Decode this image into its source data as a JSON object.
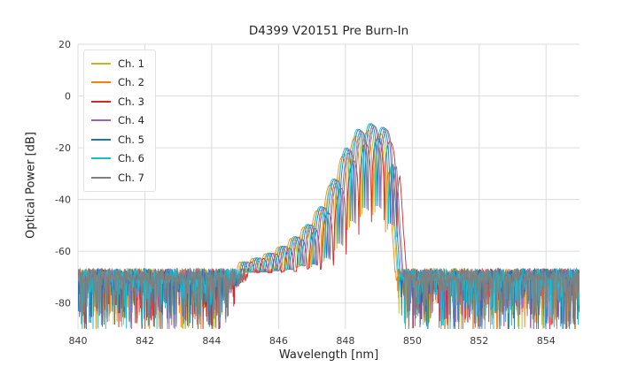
{
  "chart_data": {
    "type": "line",
    "title": "D4399 V20151 Pre Burn-In",
    "xlabel": "Wavelength [nm]",
    "ylabel": "Optical Power [dB]",
    "xlim": [
      840,
      855
    ],
    "ylim": [
      -90,
      20
    ],
    "xticks": [
      840,
      842,
      844,
      846,
      848,
      850,
      852,
      854
    ],
    "yticks": [
      20,
      0,
      -20,
      -40,
      -60,
      -80
    ],
    "grid": true,
    "legend_position": "upper-left",
    "series": [
      {
        "name": "Ch. 1",
        "color": "#bcbd22",
        "x_shift_nm": -0.1,
        "peak_delta_db": -1.5,
        "seed": 1
      },
      {
        "name": "Ch. 2",
        "color": "#ff7f0e",
        "x_shift_nm": -0.16,
        "peak_delta_db": -2.5,
        "seed": 2
      },
      {
        "name": "Ch. 3",
        "color": "#d62728",
        "x_shift_nm": 0.18,
        "peak_delta_db": -4.5,
        "seed": 3
      },
      {
        "name": "Ch. 4",
        "color": "#9467bd",
        "x_shift_nm": 0.04,
        "peak_delta_db": 0.5,
        "seed": 4
      },
      {
        "name": "Ch. 5",
        "color": "#1f77b4",
        "x_shift_nm": -0.02,
        "peak_delta_db": 1.0,
        "seed": 5
      },
      {
        "name": "Ch. 6",
        "color": "#17becf",
        "x_shift_nm": -0.07,
        "peak_delta_db": 1.0,
        "seed": 6
      },
      {
        "name": "Ch. 7",
        "color": "#7f7f7f",
        "x_shift_nm": 0.08,
        "peak_delta_db": 0.0,
        "seed": 7
      }
    ],
    "features": {
      "noise_floor_db": -70,
      "noise_band_db": [
        -65,
        -90
      ],
      "main_peak_nm": 848.8,
      "main_peak_db": -11.5,
      "spectrum_cliff_nm": 849.5,
      "side_mode_ripple_start_nm": 844.6
    },
    "spectral_model": {
      "envelope_points_nm_db": [
        [
          840,
          -96
        ],
        [
          844.2,
          -90
        ],
        [
          844.6,
          -72
        ],
        [
          845.0,
          -64
        ],
        [
          845.4,
          -62.5
        ],
        [
          845.9,
          -60
        ],
        [
          846.4,
          -56
        ],
        [
          846.9,
          -50
        ],
        [
          847.3,
          -43
        ],
        [
          847.7,
          -32
        ],
        [
          848.05,
          -21
        ],
        [
          848.35,
          -14.5
        ],
        [
          848.65,
          -11.8
        ],
        [
          849.0,
          -11.5
        ],
        [
          849.3,
          -14.5
        ],
        [
          849.45,
          -24
        ],
        [
          849.55,
          -50
        ],
        [
          849.7,
          -75
        ],
        [
          849.9,
          -96
        ],
        [
          855,
          -96
        ]
      ],
      "fringe_period_nm": 0.38,
      "fringe_phase_nm": 848.6,
      "fringe_depth_points_nm_db": [
        [
          840,
          3
        ],
        [
          845,
          4
        ],
        [
          846,
          8
        ],
        [
          846.8,
          14
        ],
        [
          847.3,
          22
        ],
        [
          847.8,
          30
        ],
        [
          848.2,
          32
        ],
        [
          855,
          32
        ]
      ],
      "noise_floor": {
        "base_db": -69,
        "jitter_db": 2.5,
        "spike_db": 22,
        "spike_sharpness": 6
      },
      "sample_step_nm": 0.01
    }
  }
}
